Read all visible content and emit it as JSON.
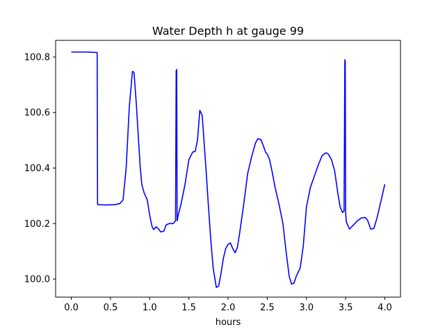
{
  "chart_data": {
    "type": "line",
    "title": "Water Depth h at gauge 99",
    "xlabel": "hours",
    "ylabel": "",
    "xlim": [
      -0.2,
      4.2
    ],
    "ylim": [
      99.935,
      100.86
    ],
    "xticks": [
      0.0,
      0.5,
      1.0,
      1.5,
      2.0,
      2.5,
      3.0,
      3.5,
      4.0
    ],
    "xtick_labels": [
      "0.0",
      "0.5",
      "1.0",
      "1.5",
      "2.0",
      "2.5",
      "3.0",
      "3.5",
      "4.0"
    ],
    "yticks": [
      100.0,
      100.2,
      100.4,
      100.6,
      100.8
    ],
    "ytick_labels": [
      "100.0",
      "100.2",
      "100.4",
      "100.6",
      "100.8"
    ],
    "grid": false,
    "series": [
      {
        "color": "#0000ff",
        "x": [
          0.0,
          0.2,
          0.33,
          0.335,
          0.34,
          0.45,
          0.55,
          0.62,
          0.66,
          0.7,
          0.74,
          0.78,
          0.8,
          0.83,
          0.86,
          0.88,
          0.9,
          0.93,
          0.97,
          1.0,
          1.03,
          1.05,
          1.08,
          1.11,
          1.14,
          1.18,
          1.21,
          1.25,
          1.3,
          1.33,
          1.338,
          1.345,
          1.35,
          1.355,
          1.36,
          1.4,
          1.45,
          1.5,
          1.55,
          1.58,
          1.61,
          1.64,
          1.67,
          1.7,
          1.72,
          1.75,
          1.78,
          1.81,
          1.85,
          1.88,
          1.91,
          1.94,
          1.97,
          2.0,
          2.03,
          2.06,
          2.09,
          2.12,
          2.15,
          2.2,
          2.25,
          2.3,
          2.35,
          2.38,
          2.42,
          2.45,
          2.48,
          2.5,
          2.53,
          2.56,
          2.6,
          2.65,
          2.7,
          2.74,
          2.78,
          2.81,
          2.84,
          2.87,
          2.92,
          2.96,
          3.0,
          3.05,
          3.1,
          3.15,
          3.2,
          3.25,
          3.28,
          3.32,
          3.36,
          3.4,
          3.43,
          3.46,
          3.48,
          3.49,
          3.495,
          3.5,
          3.505,
          3.51,
          3.55,
          3.6,
          3.65,
          3.7,
          3.75,
          3.78,
          3.82,
          3.86,
          3.9,
          3.95,
          4.0
        ],
        "y": [
          100.818,
          100.818,
          100.816,
          100.27,
          100.268,
          100.267,
          100.268,
          100.272,
          100.285,
          100.4,
          100.62,
          100.748,
          100.745,
          100.63,
          100.49,
          100.4,
          100.34,
          100.31,
          100.285,
          100.23,
          100.19,
          100.178,
          100.188,
          100.182,
          100.17,
          100.172,
          100.195,
          100.2,
          100.2,
          100.21,
          100.75,
          100.755,
          100.21,
          100.215,
          100.225,
          100.27,
          100.34,
          100.43,
          100.458,
          100.46,
          100.5,
          100.608,
          100.59,
          100.47,
          100.39,
          100.26,
          100.14,
          100.04,
          99.97,
          99.975,
          100.02,
          100.075,
          100.11,
          100.125,
          100.13,
          100.11,
          100.095,
          100.115,
          100.17,
          100.27,
          100.38,
          100.44,
          100.49,
          100.506,
          100.502,
          100.48,
          100.456,
          100.45,
          100.43,
          100.39,
          100.33,
          100.27,
          100.2,
          100.1,
          100.01,
          99.982,
          99.985,
          100.01,
          100.04,
          100.12,
          100.26,
          100.33,
          100.37,
          100.41,
          100.445,
          100.455,
          100.45,
          100.43,
          100.39,
          100.31,
          100.26,
          100.24,
          100.245,
          100.79,
          100.785,
          100.24,
          100.22,
          100.205,
          100.18,
          100.195,
          100.21,
          100.22,
          100.222,
          100.212,
          100.18,
          100.182,
          100.22,
          100.28,
          100.342
        ]
      }
    ]
  }
}
